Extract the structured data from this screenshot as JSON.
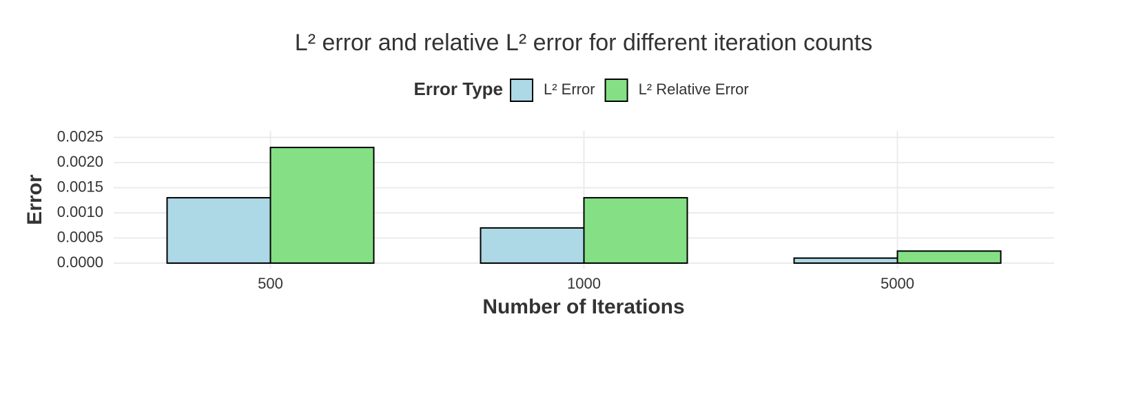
{
  "chart_data": {
    "type": "bar",
    "title": "L² error and relative L² error for different iteration counts",
    "x_label": "Number of Iterations",
    "y_label": "Error",
    "legend_title": "Error Type",
    "categories": [
      "500",
      "1000",
      "5000"
    ],
    "series": [
      {
        "name": "L² Error",
        "color": "#add8e6",
        "values": [
          0.0013,
          0.0007,
          0.0001
        ]
      },
      {
        "name": "L² Relative Error",
        "color": "#85e085",
        "values": [
          0.0023,
          0.0013,
          0.00024
        ]
      }
    ],
    "ylim": [
      -0.00011,
      0.00263
    ],
    "yticks": [
      {
        "value": 0,
        "label": "0.0000"
      },
      {
        "value": 0.0005,
        "label": "0.0005"
      },
      {
        "value": 0.001,
        "label": "0.0010"
      },
      {
        "value": 0.0015,
        "label": "0.0015"
      },
      {
        "value": 0.002,
        "label": "0.0020"
      },
      {
        "value": 0.0025,
        "label": "0.0025"
      }
    ],
    "grid": true,
    "legend_position": "top"
  }
}
